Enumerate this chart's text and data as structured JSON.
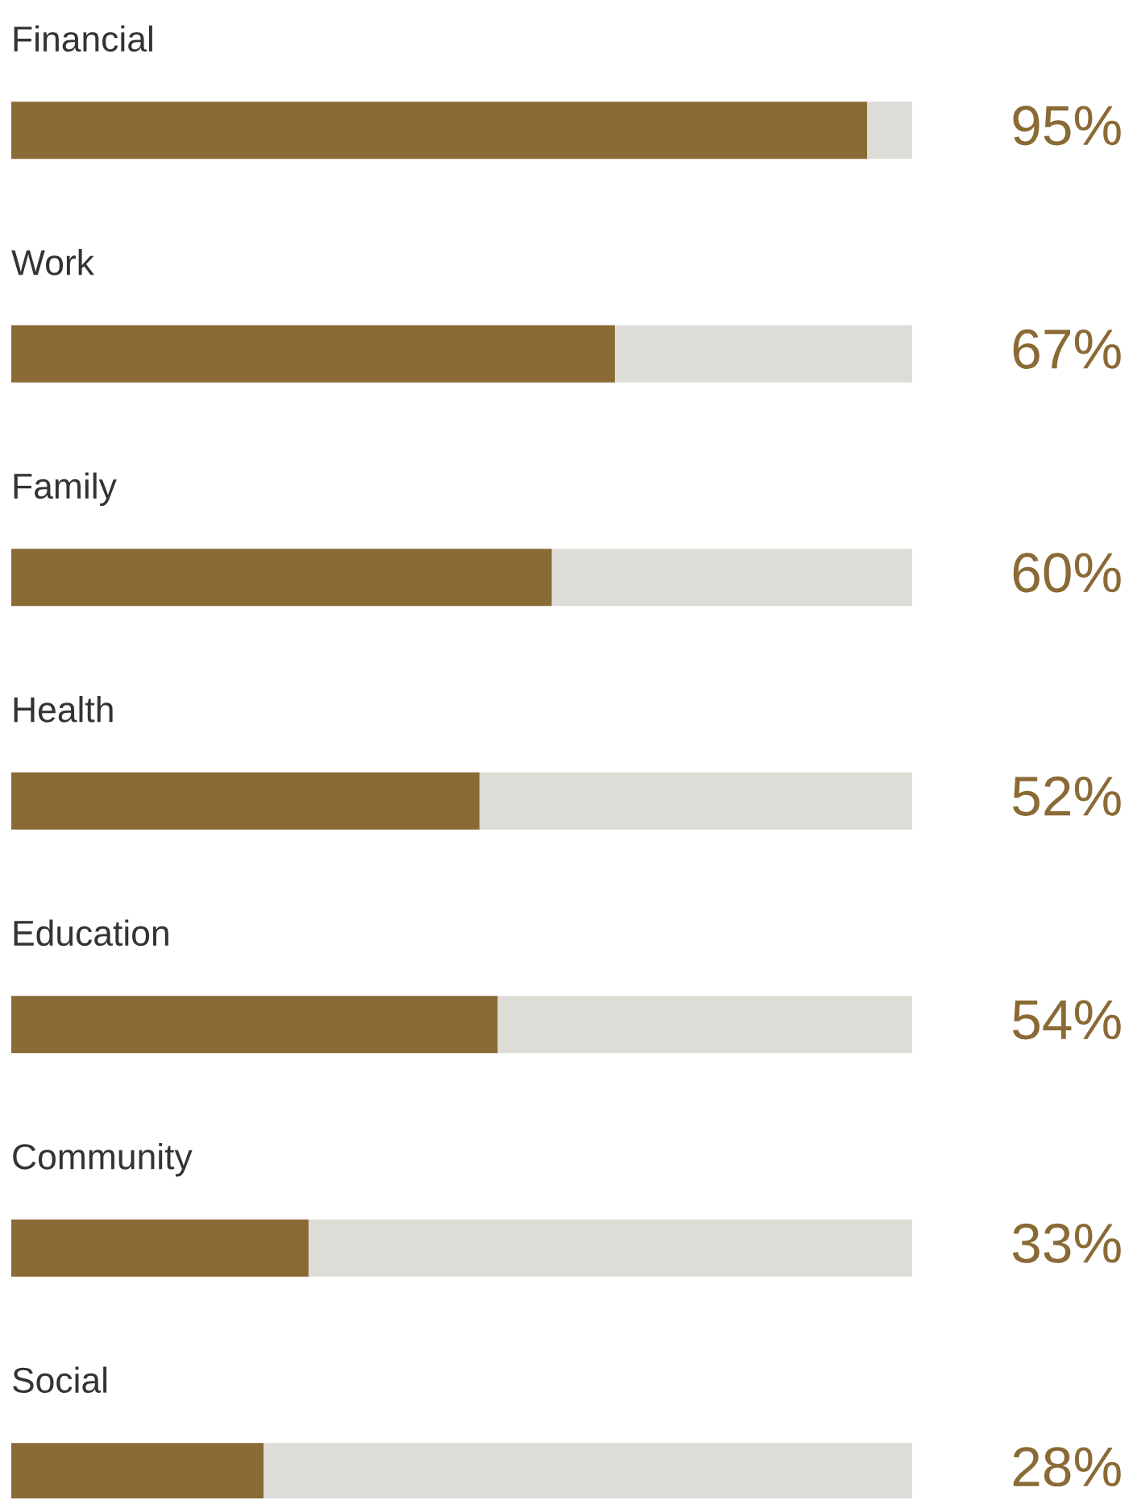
{
  "chart_data": {
    "type": "bar",
    "orientation": "horizontal",
    "stacked": true,
    "tick_labels": false,
    "categories": [
      "Financial",
      "Work",
      "Family",
      "Health",
      "Education",
      "Community",
      "Social"
    ],
    "series": [
      {
        "color": "#8a6a35",
        "values": [
          95,
          67,
          60,
          52,
          54,
          33,
          28
        ],
        "value_labels": [
          "95%",
          "67%",
          "60%",
          "52%",
          "54%",
          "33%",
          "28%"
        ]
      },
      {
        "color": "#dddcd7",
        "values": [
          5,
          33,
          40,
          48,
          46,
          67,
          72
        ]
      }
    ]
  }
}
